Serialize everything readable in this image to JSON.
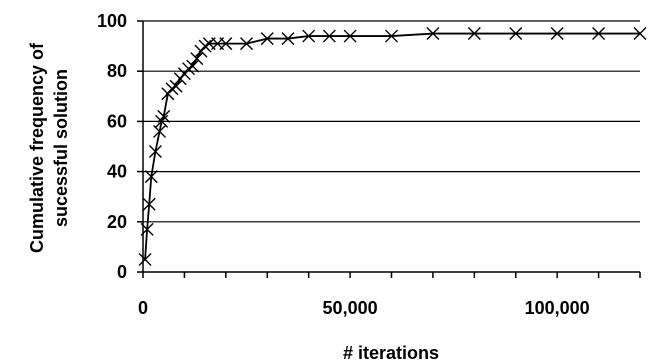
{
  "chart_data": {
    "type": "line",
    "title": "",
    "xlabel": "# iterations",
    "ylabel_lines": [
      "Cumulative frequency of",
      "sucessful solution"
    ],
    "xlim": [
      0,
      120000
    ],
    "ylim": [
      0,
      100
    ],
    "grid": {
      "y": true,
      "x": false
    },
    "x_ticks": [
      0,
      50000,
      100000
    ],
    "x_tick_labels": [
      "0",
      "50,000",
      "100,000"
    ],
    "y_ticks": [
      0,
      20,
      40,
      60,
      80,
      100
    ],
    "y_tick_labels": [
      "0",
      "20",
      "40",
      "60",
      "80",
      "100"
    ],
    "marker": "x",
    "line_color": "#000000",
    "series": [
      {
        "x": [
          500,
          1000,
          1500,
          2000,
          3000,
          4000,
          4500,
          5000,
          6000,
          7000,
          8000,
          9000,
          10000,
          11000,
          12000,
          13000,
          14000,
          15000,
          16000,
          18000,
          20000,
          25000,
          30000,
          35000,
          40000,
          45000,
          50000,
          60000,
          70000,
          80000,
          90000,
          100000,
          110000,
          120000
        ],
        "y": [
          5,
          17,
          27,
          38,
          48,
          56,
          60,
          62,
          71,
          73,
          74,
          77,
          79,
          81,
          82,
          85,
          88,
          90,
          91,
          91,
          91,
          91,
          93,
          93,
          94,
          94,
          94,
          94,
          95,
          95,
          95,
          95,
          95,
          95
        ]
      }
    ]
  }
}
